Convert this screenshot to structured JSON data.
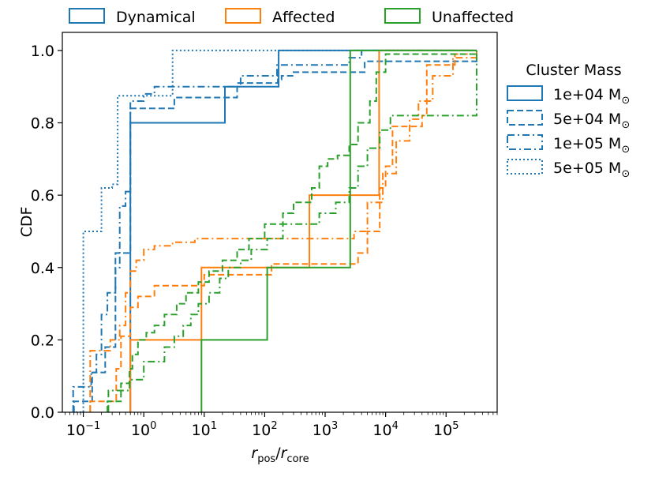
{
  "chart_data": {
    "type": "line",
    "ylabel": "CDF",
    "xlabel_main": "r",
    "xlabel_num_sub": "pos",
    "xlabel_den_sub": "core",
    "xscale": "log",
    "xlim": [
      0.045,
      700000
    ],
    "ylim": [
      0,
      1.05
    ],
    "yticks": [
      0.0,
      0.2,
      0.4,
      0.6,
      0.8,
      1.0
    ],
    "ytick_labels": [
      "0.0",
      "0.2",
      "0.4",
      "0.6",
      "0.8",
      "1.0"
    ],
    "xticks": [
      {
        "exp": -1,
        "label": "10",
        "sup": "−1"
      },
      {
        "exp": 0,
        "label": "10",
        "sup": "0"
      },
      {
        "exp": 1,
        "label": "10",
        "sup": "1"
      },
      {
        "exp": 2,
        "label": "10",
        "sup": "2"
      },
      {
        "exp": 3,
        "label": "10",
        "sup": "3"
      },
      {
        "exp": 4,
        "label": "10",
        "sup": "4"
      },
      {
        "exp": 5,
        "label": "10",
        "sup": "5"
      }
    ],
    "grid": false,
    "legend_channel_placement": "top",
    "legend_mass_placement": "right-outside",
    "legend_channel": [
      {
        "label": "Dynamical",
        "color": "#1f77b4"
      },
      {
        "label": "Affected",
        "color": "#ff7f0e"
      },
      {
        "label": "Unaffected",
        "color": "#2ca02c"
      }
    ],
    "legend_mass_title": "Cluster Mass",
    "legend_mass": [
      {
        "label": "1e+04 M",
        "sub": "⊙",
        "style": "solid"
      },
      {
        "label": "5e+04 M",
        "sub": "⊙",
        "style": "dashed"
      },
      {
        "label": "1e+05 M",
        "sub": "⊙",
        "style": "dashdot"
      },
      {
        "label": "5e+05 M",
        "sub": "⊙",
        "style": "dotted"
      }
    ],
    "series": [
      {
        "channel": "Dynamical",
        "mass": "1e+04",
        "style": "solid",
        "color": "#1f77b4",
        "x": [
          0.6,
          0.6,
          22,
          170,
          320000
        ],
        "y": [
          0.0,
          0.8,
          0.9,
          1.0,
          1.0
        ]
      },
      {
        "channel": "Dynamical",
        "mass": "5e+04",
        "style": "dashed",
        "color": "#1f77b4",
        "x": [
          0.07,
          0.07,
          0.14,
          0.14,
          0.23,
          0.23,
          0.34,
          0.34,
          0.58,
          0.6,
          0.75,
          1.5,
          2.8,
          3.2,
          30,
          35,
          165,
          190,
          300,
          4500,
          320000
        ],
        "y": [
          0.0,
          0.03,
          0.03,
          0.11,
          0.11,
          0.18,
          0.18,
          0.44,
          0.44,
          0.84,
          0.84,
          0.84,
          0.84,
          0.87,
          0.87,
          0.91,
          0.92,
          0.93,
          0.94,
          0.97,
          1.0
        ]
      },
      {
        "channel": "Dynamical",
        "mass": "1e+05",
        "style": "dashdot",
        "color": "#1f77b4",
        "x": [
          0.068,
          0.068,
          0.095,
          0.135,
          0.165,
          0.2,
          0.25,
          0.34,
          0.4,
          0.5,
          0.6,
          1.0,
          1.5,
          7,
          20,
          40,
          160,
          320,
          2500,
          4000,
          320000
        ],
        "y": [
          0.0,
          0.07,
          0.07,
          0.11,
          0.16,
          0.27,
          0.33,
          0.4,
          0.57,
          0.61,
          0.86,
          0.88,
          0.9,
          0.9,
          0.9,
          0.93,
          0.96,
          0.96,
          0.98,
          1.0,
          1.0
        ]
      },
      {
        "channel": "Dynamical",
        "mass": "5e+05",
        "style": "dotted",
        "color": "#1f77b4",
        "x": [
          0.075,
          0.1,
          0.1,
          0.145,
          0.2,
          0.25,
          0.3,
          0.35,
          0.37,
          1.0,
          2.0,
          3.0,
          320000
        ],
        "y": [
          0.0,
          0.0,
          0.5,
          0.5,
          0.62,
          0.62,
          0.63,
          0.63,
          0.875,
          0.875,
          0.875,
          1.0,
          1.0
        ]
      },
      {
        "channel": "Affected",
        "mass": "1e+04",
        "style": "solid",
        "color": "#ff7f0e",
        "x": [
          0.6,
          0.6,
          9,
          9,
          550,
          550,
          7800,
          7800,
          320000
        ],
        "y": [
          0.0,
          0.2,
          0.2,
          0.4,
          0.4,
          0.6,
          0.6,
          1.0,
          1.0
        ]
      },
      {
        "channel": "Affected",
        "mass": "5e+04",
        "style": "dashed",
        "color": "#ff7f0e",
        "x": [
          0.13,
          0.13,
          0.35,
          0.35,
          0.42,
          0.6,
          0.8,
          1.5,
          10,
          130,
          2800,
          3500,
          5000,
          8000,
          10000,
          13000,
          40000,
          48000,
          140000,
          320000
        ],
        "y": [
          0.0,
          0.03,
          0.03,
          0.12,
          0.21,
          0.29,
          0.32,
          0.35,
          0.38,
          0.41,
          0.41,
          0.44,
          0.5,
          0.62,
          0.68,
          0.79,
          0.82,
          0.96,
          0.99,
          1.0
        ]
      },
      {
        "channel": "Affected",
        "mass": "1e+05",
        "style": "dashdot",
        "color": "#ff7f0e",
        "x": [
          0.13,
          0.13,
          0.28,
          0.4,
          0.5,
          0.6,
          0.75,
          1.0,
          1.5,
          3.0,
          7.0,
          10,
          300,
          3000,
          5000,
          9000,
          15000,
          25000,
          35000,
          60000,
          130000,
          320000
        ],
        "y": [
          0.0,
          0.17,
          0.2,
          0.24,
          0.33,
          0.39,
          0.42,
          0.45,
          0.46,
          0.47,
          0.48,
          0.48,
          0.48,
          0.5,
          0.58,
          0.66,
          0.75,
          0.81,
          0.86,
          0.93,
          0.98,
          1.0
        ]
      },
      {
        "channel": "Unaffected",
        "mass": "1e+04",
        "style": "solid",
        "color": "#2ca02c",
        "x": [
          9,
          9,
          110,
          110,
          2600,
          2600,
          320000
        ],
        "y": [
          0.0,
          0.2,
          0.2,
          0.4,
          0.4,
          1.0,
          1.0
        ]
      },
      {
        "channel": "Unaffected",
        "mass": "5e+04",
        "style": "dashed",
        "color": "#2ca02c",
        "x": [
          0.25,
          0.25,
          0.42,
          0.42,
          0.58,
          0.65,
          0.8,
          1.1,
          1.5,
          2.2,
          3.5,
          5.0,
          8.0,
          12,
          20,
          35,
          55,
          100,
          200,
          300,
          600,
          800,
          1100,
          1600,
          2500,
          3500,
          5500,
          7000,
          10000,
          320000
        ],
        "y": [
          0.0,
          0.03,
          0.03,
          0.08,
          0.12,
          0.16,
          0.2,
          0.22,
          0.24,
          0.27,
          0.3,
          0.33,
          0.36,
          0.39,
          0.42,
          0.45,
          0.48,
          0.52,
          0.55,
          0.58,
          0.62,
          0.68,
          0.7,
          0.71,
          0.74,
          0.8,
          0.86,
          0.94,
          0.99,
          1.0
        ]
      },
      {
        "channel": "Unaffected",
        "mass": "1e+05",
        "style": "dashdot",
        "color": "#2ca02c",
        "x": [
          0.26,
          0.26,
          0.58,
          1.0,
          2.2,
          3.2,
          4.5,
          6.0,
          8.0,
          12,
          18,
          25,
          40,
          60,
          110,
          200,
          800,
          1500,
          2500,
          3500,
          5000,
          8000,
          12000,
          320000
        ],
        "y": [
          0.0,
          0.06,
          0.09,
          0.14,
          0.18,
          0.21,
          0.24,
          0.27,
          0.3,
          0.33,
          0.37,
          0.4,
          0.42,
          0.45,
          0.48,
          0.52,
          0.55,
          0.58,
          0.62,
          0.68,
          0.73,
          0.78,
          0.82,
          1.0
        ]
      }
    ]
  }
}
